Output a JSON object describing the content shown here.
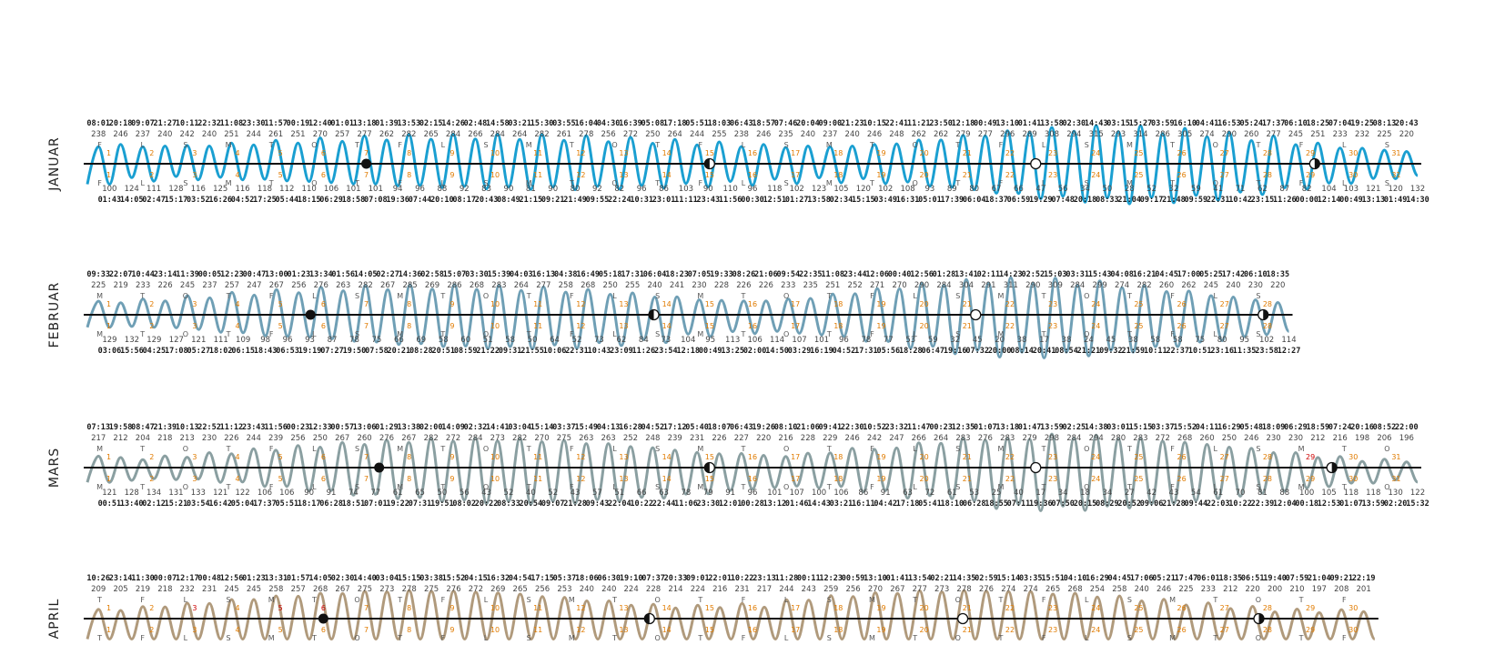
{
  "chart_data": [
    {
      "type": "line",
      "month": "JANUAR",
      "color": "#1a9fd1",
      "y_offset": 0,
      "days": 31,
      "day_labels": [
        "1",
        "2",
        "3",
        "4",
        "5",
        "6",
        "7",
        "8",
        "9",
        "10",
        "11",
        "12",
        "13",
        "14",
        "15",
        "16",
        "17",
        "18",
        "19",
        "20",
        "21",
        "22",
        "23",
        "24",
        "25",
        "26",
        "27",
        "28",
        "29",
        "30",
        "31"
      ],
      "weekdays": [
        "F",
        "L",
        "S",
        "M",
        "T",
        "O",
        "T",
        "F",
        "L",
        "S",
        "M",
        "T",
        "O",
        "T",
        "F",
        "L",
        "S",
        "M",
        "T",
        "O",
        "T",
        "F",
        "L",
        "S",
        "M",
        "T",
        "O",
        "T",
        "F",
        "L",
        "S"
      ],
      "high_times": [
        "08:01",
        "20:18",
        "09:07",
        "21:27",
        "10:11",
        "22:32",
        "11:08",
        "23:30",
        "11:57",
        "00:19",
        "12:40",
        "01:01",
        "13:18",
        "01:39",
        "13:53",
        "02:15",
        "14:26",
        "02:48",
        "14:58",
        "03:21",
        "15:30",
        "03:55",
        "16:04",
        "04:30",
        "16:39",
        "05:08",
        "17:18",
        "05:51",
        "18:03",
        "06:43",
        "18:57",
        "07:46",
        "20:04",
        "09:00",
        "21:23",
        "10:15",
        "22:41",
        "11:21",
        "23:50",
        "12:18",
        "00:49",
        "13:10",
        "01:41",
        "13:58",
        "02:30",
        "14:43",
        "03:15",
        "15:27",
        "03:59",
        "16:10",
        "04:41",
        "16:53",
        "05:24",
        "17:37",
        "06:10",
        "18:25",
        "07:04",
        "19:25",
        "08:13",
        "20:43"
      ],
      "high_heights": [
        238,
        246,
        237,
        240,
        242,
        240,
        251,
        244,
        261,
        251,
        270,
        257,
        277,
        262,
        282,
        265,
        284,
        266,
        284,
        264,
        282,
        261,
        278,
        256,
        272,
        250,
        264,
        244,
        255,
        238,
        246,
        235,
        240,
        237,
        240,
        246,
        248,
        262,
        262,
        279,
        277,
        296,
        289,
        308,
        294,
        315,
        293,
        314,
        286,
        305,
        274,
        290,
        260,
        277,
        245,
        251,
        233,
        232,
        225,
        220
      ],
      "low_times": [
        "01:43",
        "14:05",
        "02:47",
        "15:17",
        "03:52",
        "16:26",
        "04:52",
        "17:25",
        "05:44",
        "18:15",
        "06:29",
        "18:58",
        "07:08",
        "19:36",
        "07:44",
        "20:10",
        "08:17",
        "20:43",
        "08:49",
        "21:15",
        "09:21",
        "21:49",
        "09:55",
        "22:24",
        "10:31",
        "23:01",
        "11:11",
        "23:43",
        "11:56",
        "00:30",
        "12:51",
        "01:27",
        "13:58",
        "02:34",
        "15:15",
        "03:49",
        "16:31",
        "05:01",
        "17:39",
        "06:04",
        "18:37",
        "06:59",
        "19:29",
        "07:48",
        "20:18",
        "08:33",
        "21:04",
        "09:17",
        "21:48",
        "09:59",
        "22:31",
        "10:42",
        "23:15",
        "11:26",
        "00:00",
        "12:14",
        "00:49",
        "13:13",
        "01:49",
        "14:30"
      ],
      "low_heights": [
        100,
        124,
        111,
        128,
        116,
        125,
        116,
        118,
        112,
        110,
        106,
        101,
        101,
        94,
        96,
        88,
        92,
        83,
        90,
        81,
        90,
        80,
        92,
        82,
        96,
        86,
        103,
        90,
        110,
        96,
        118,
        102,
        123,
        105,
        120,
        102,
        108,
        93,
        89,
        80,
        67,
        66,
        47,
        56,
        34,
        50,
        28,
        52,
        32,
        59,
        41,
        71,
        62,
        87,
        82,
        104,
        103,
        121,
        120,
        132
      ],
      "moon": [
        {
          "day": 7.0,
          "phase": "full"
        },
        {
          "day": 15.0,
          "phase": "last"
        },
        {
          "day": 22.6,
          "phase": "new"
        },
        {
          "day": 29.1,
          "phase": "first"
        }
      ]
    },
    {
      "type": "line",
      "month": "FEBRUAR",
      "color": "#6f9fb5",
      "y_offset": 166,
      "days": 28,
      "day_labels": [
        "1",
        "2",
        "3",
        "4",
        "5",
        "6",
        "7",
        "8",
        "9",
        "10",
        "11",
        "12",
        "13",
        "14",
        "15",
        "16",
        "17",
        "18",
        "19",
        "20",
        "21",
        "22",
        "23",
        "24",
        "25",
        "26",
        "27",
        "28"
      ],
      "weekdays": [
        "M",
        "T",
        "O",
        "T",
        "F",
        "L",
        "S",
        "M",
        "T",
        "O",
        "T",
        "F",
        "L",
        "S",
        "M",
        "T",
        "O",
        "T",
        "F",
        "L",
        "S",
        "M",
        "T",
        "O",
        "T",
        "F",
        "L",
        "S"
      ],
      "high_times": [
        "09:33",
        "22:07",
        "10:44",
        "23:14",
        "11:39",
        "00:05",
        "12:23",
        "00:47",
        "13:00",
        "01:23",
        "13:34",
        "01:56",
        "14:05",
        "02:27",
        "14:36",
        "02:58",
        "15:07",
        "03:30",
        "15:39",
        "04:03",
        "16:13",
        "04:38",
        "16:49",
        "05:18",
        "17:31",
        "06:04",
        "18:23",
        "07:05",
        "19:33",
        "08:26",
        "21:06",
        "09:54",
        "22:35",
        "11:08",
        "23:44",
        "12:06",
        "00:40",
        "12:56",
        "01:28",
        "13:41",
        "02:11",
        "14:23",
        "02:52",
        "15:03",
        "03:31",
        "15:43",
        "04:08",
        "16:21",
        "04:45",
        "17:00",
        "05:25",
        "17:42",
        "06:10",
        "18:35"
      ],
      "high_heights": [
        225,
        219,
        233,
        226,
        245,
        237,
        257,
        247,
        267,
        256,
        276,
        263,
        282,
        267,
        285,
        269,
        286,
        268,
        283,
        264,
        277,
        258,
        268,
        250,
        255,
        240,
        241,
        230,
        228,
        226,
        226,
        233,
        235,
        251,
        252,
        271,
        270,
        290,
        284,
        304,
        291,
        311,
        290,
        309,
        284,
        299,
        274,
        282,
        260,
        262,
        245,
        240,
        230,
        220
      ],
      "low_times": [
        "03:06",
        "15:56",
        "04:25",
        "17:08",
        "05:27",
        "18:02",
        "06:15",
        "18:43",
        "06:53",
        "19:19",
        "07:27",
        "19:50",
        "07:58",
        "20:21",
        "08:28",
        "20:51",
        "08:59",
        "21:22",
        "09:31",
        "21:55",
        "10:06",
        "22:31",
        "10:43",
        "23:09",
        "11:26",
        "23:54",
        "12:18",
        "00:49",
        "13:25",
        "02:00",
        "14:50",
        "03:29",
        "16:19",
        "04:52",
        "17:31",
        "05:56",
        "18:28",
        "06:47",
        "19:16",
        "07:32",
        "20:00",
        "08:14",
        "20:41",
        "08:54",
        "21:21",
        "09:32",
        "21:59",
        "10:11",
        "22:37",
        "10:51",
        "23:16",
        "11:35",
        "23:58",
        "12:27"
      ],
      "low_heights": [
        129,
        132,
        129,
        127,
        121,
        111,
        109,
        98,
        96,
        93,
        87,
        78,
        75,
        66,
        69,
        58,
        60,
        51,
        58,
        50,
        64,
        52,
        73,
        62,
        84,
        73,
        104,
        95,
        113,
        106,
        114,
        107,
        101,
        96,
        78,
        77,
        53,
        59,
        32,
        45,
        20,
        38,
        17,
        38,
        24,
        45,
        38,
        58,
        58,
        75,
        80,
        95,
        102,
        114
      ],
      "moon": [
        {
          "day": 5.7,
          "phase": "full"
        },
        {
          "day": 13.7,
          "phase": "last"
        },
        {
          "day": 21.2,
          "phase": "new"
        },
        {
          "day": 27.9,
          "phase": "first"
        }
      ]
    },
    {
      "type": "line",
      "month": "MARS",
      "color": "#8a9fa1",
      "y_offset": 334,
      "days": 31,
      "day_labels": [
        "1",
        "2",
        "3",
        "4",
        "5",
        "6",
        "7",
        "8",
        "9",
        "10",
        "11",
        "12",
        "13",
        "14",
        "15",
        "16",
        "17",
        "18",
        "19",
        "20",
        "21",
        "22",
        "23",
        "24",
        "25",
        "26",
        "27",
        "28",
        "29",
        "30",
        "31"
      ],
      "holiday_days": [
        29
      ],
      "weekdays": [
        "M",
        "T",
        "O",
        "T",
        "F",
        "L",
        "S",
        "M",
        "T",
        "O",
        "T",
        "F",
        "L",
        "S",
        "M",
        "T",
        "O",
        "T",
        "F",
        "L",
        "S",
        "M",
        "T",
        "O",
        "T",
        "F",
        "L",
        "S",
        "M",
        "T",
        "O"
      ],
      "high_times": [
        "07:13",
        "19:58",
        "08:47",
        "21:39",
        "10:13",
        "22:52",
        "11:12",
        "23:43",
        "11:56",
        "00:23",
        "12:33",
        "00:57",
        "13:06",
        "01:29",
        "13:38",
        "02:00",
        "14:09",
        "02:32",
        "14:41",
        "03:04",
        "15:14",
        "03:37",
        "15:49",
        "04:13",
        "16:28",
        "04:52",
        "17:12",
        "05:40",
        "18:07",
        "06:43",
        "19:26",
        "08:10",
        "21:06",
        "09:41",
        "22:30",
        "10:52",
        "23:32",
        "11:47",
        "00:23",
        "12:35",
        "01:07",
        "13:18",
        "01:47",
        "13:59",
        "02:25",
        "14:38",
        "03:01",
        "15:15",
        "03:37",
        "15:52",
        "04:11",
        "16:29",
        "05:48",
        "18:09",
        "06:29",
        "18:59",
        "07:24",
        "20:16",
        "08:52",
        "22:00"
      ],
      "high_heights": [
        217,
        212,
        204,
        218,
        213,
        230,
        226,
        244,
        239,
        256,
        250,
        267,
        260,
        276,
        267,
        282,
        272,
        284,
        273,
        282,
        270,
        275,
        263,
        263,
        252,
        248,
        239,
        231,
        226,
        227,
        220,
        216,
        228,
        229,
        246,
        242,
        247,
        266,
        264,
        283,
        276,
        283,
        279,
        298,
        284,
        294,
        280,
        283,
        272,
        268,
        260,
        250,
        246,
        230,
        230,
        212,
        216,
        198,
        206,
        196
      ],
      "low_times": [
        "00:51",
        "13:40",
        "02:12",
        "15:21",
        "03:54",
        "16:42",
        "05:04",
        "17:37",
        "05:51",
        "18:17",
        "06:28",
        "18:51",
        "07:01",
        "19:22",
        "07:31",
        "19:51",
        "08:02",
        "20:22",
        "08:33",
        "20:54",
        "09:07",
        "21:28",
        "09:43",
        "22:04",
        "10:22",
        "22:44",
        "11:06",
        "23:30",
        "12:01",
        "00:28",
        "13:12",
        "01:46",
        "14:43",
        "03:21",
        "16:11",
        "04:42",
        "17:18",
        "05:41",
        "18:10",
        "06:28",
        "18:55",
        "07:11",
        "19:36",
        "07:50",
        "20:15",
        "08:29",
        "20:52",
        "09:06",
        "21:28",
        "09:44",
        "22:03",
        "10:22",
        "22:39",
        "12:04",
        "00:18",
        "12:53",
        "01:07",
        "13:59",
        "02:20",
        "15:32"
      ],
      "low_heights": [
        121,
        128,
        134,
        131,
        133,
        121,
        122,
        106,
        106,
        90,
        91,
        74,
        77,
        61,
        65,
        50,
        56,
        43,
        52,
        40,
        52,
        43,
        57,
        51,
        66,
        63,
        78,
        79,
        91,
        96,
        101,
        107,
        100,
        106,
        86,
        91,
        63,
        72,
        61,
        53,
        25,
        40,
        17,
        34,
        18,
        34,
        27,
        42,
        43,
        54,
        61,
        70,
        81,
        88,
        100,
        105,
        118,
        118,
        130,
        122
      ],
      "moon": [
        {
          "day": 7.3,
          "phase": "full"
        },
        {
          "day": 15.0,
          "phase": "last"
        },
        {
          "day": 22.6,
          "phase": "new"
        },
        {
          "day": 29.5,
          "phase": "first"
        }
      ]
    },
    {
      "type": "line",
      "month": "APRIL",
      "color": "#b09a7c",
      "y_offset": 500,
      "days": 30,
      "day_labels": [
        "1",
        "2",
        "3",
        "4",
        "5",
        "6",
        "7",
        "8",
        "9",
        "10",
        "11",
        "12",
        "13",
        "14",
        "15",
        "16",
        "17",
        "18",
        "19",
        "20",
        "21",
        "22",
        "23",
        "24",
        "25",
        "26",
        "27",
        "28",
        "29",
        "30"
      ],
      "holiday_days": [
        3,
        5,
        6
      ],
      "weekdays": [
        "T",
        "F",
        "L",
        "S",
        "M",
        "T",
        "O",
        "T",
        "F",
        "L",
        "S",
        "M",
        "T",
        "O",
        "T",
        "F",
        "L",
        "S",
        "M",
        "T",
        "O",
        "T",
        "F",
        "L",
        "S",
        "M",
        "T",
        "O",
        "T",
        "F"
      ],
      "high_times": [
        "10:26",
        "23:14",
        "11:30",
        "00:07",
        "12:17",
        "00:48",
        "12:56",
        "01:23",
        "13:31",
        "01:57",
        "14:05",
        "02:30",
        "14:40",
        "03:04",
        "15:15",
        "03:38",
        "15:52",
        "04:15",
        "16:32",
        "04:54",
        "17:15",
        "05:37",
        "18:06",
        "06:30",
        "19:10",
        "07:37",
        "20:33",
        "09:01",
        "22:01",
        "10:22",
        "23:13",
        "11:28",
        "00:11",
        "12:23",
        "00:59",
        "13:10",
        "01:41",
        "13:54",
        "02:21",
        "14:35",
        "02:59",
        "15:14",
        "03:35",
        "15:51",
        "04:10",
        "16:29",
        "04:45",
        "17:06",
        "05:21",
        "17:47",
        "06:01",
        "18:35",
        "06:51",
        "19:40",
        "07:59",
        "21:04",
        "09:21",
        "22:19"
      ],
      "high_heights": [
        209,
        205,
        219,
        218,
        232,
        231,
        245,
        245,
        258,
        257,
        268,
        267,
        275,
        273,
        278,
        275,
        276,
        272,
        269,
        265,
        256,
        253,
        240,
        240,
        224,
        228,
        214,
        224,
        216,
        231,
        217,
        244,
        243,
        259,
        256,
        270,
        267,
        277,
        273,
        278,
        276,
        274,
        274,
        265,
        268,
        254,
        258,
        240,
        246,
        225,
        233,
        212,
        220,
        200,
        210,
        197,
        208,
        201
      ],
      "low_times": [],
      "low_heights": [],
      "moon": [
        {
          "day": 6.0,
          "phase": "full"
        },
        {
          "day": 13.6,
          "phase": "last"
        },
        {
          "day": 20.9,
          "phase": "new"
        },
        {
          "day": 27.8,
          "phase": "first"
        }
      ]
    }
  ]
}
